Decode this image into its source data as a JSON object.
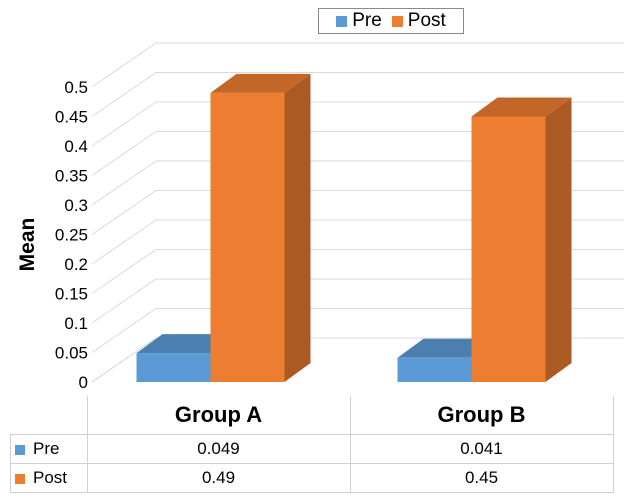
{
  "chart_data": {
    "type": "bar",
    "style": "3d-clustered-column",
    "categories": [
      "Group A",
      "Group B"
    ],
    "series": [
      {
        "name": "Pre",
        "values": [
          0.049,
          0.041
        ],
        "color": "#5b9bd5"
      },
      {
        "name": "Post",
        "values": [
          0.49,
          0.45
        ],
        "color": "#ed7d31"
      }
    ],
    "ylabel": "Mean",
    "ylim": [
      0,
      0.5
    ],
    "yticks": [
      "0",
      "0.05",
      "0.1",
      "0.15",
      "0.2",
      "0.25",
      "0.3",
      "0.35",
      "0.4",
      "0.45",
      "0.5"
    ],
    "grid": true,
    "legend_position": "top",
    "data_table": {
      "rows": [
        {
          "series": "Pre",
          "values": [
            "0.049",
            "0.041"
          ]
        },
        {
          "series": "Post",
          "values": [
            "0.49",
            "0.45"
          ]
        }
      ]
    }
  }
}
